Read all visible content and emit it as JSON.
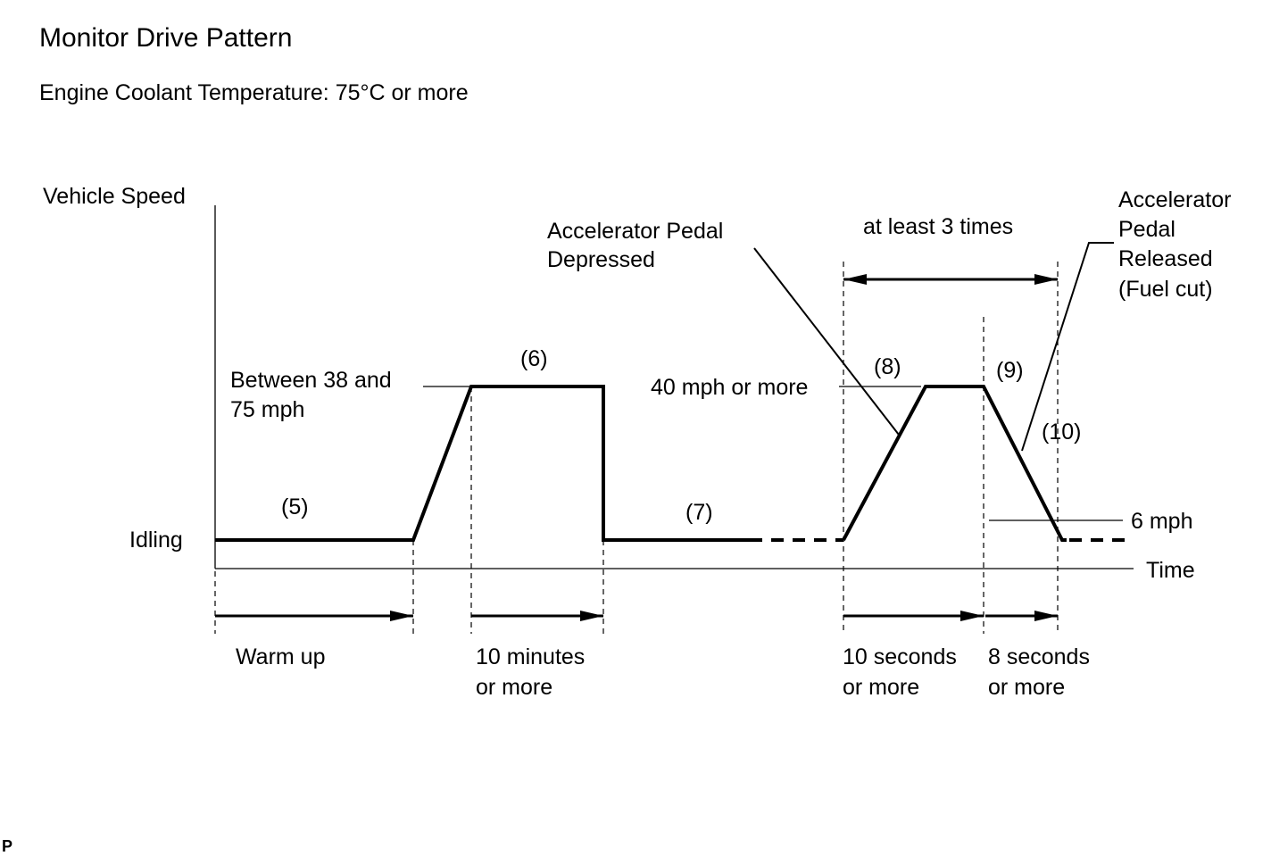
{
  "title": "Monitor Drive Pattern",
  "condition": "Engine Coolant Temperature: 75°C or more",
  "y_axis_label": "Vehicle Speed",
  "x_axis_label": "Time",
  "idling_label": "Idling",
  "steps": {
    "s5": "(5)",
    "s6": "(6)",
    "s7": "(7)",
    "s8": "(8)",
    "s9": "(9)",
    "s10": "(10)"
  },
  "speed_labels": {
    "between_1": "Between 38 and",
    "between_2": "75 mph",
    "forty": "40 mph or more",
    "six": "6 mph"
  },
  "annotations": {
    "pedal_depressed_1": "Accelerator Pedal",
    "pedal_depressed_2": "Depressed",
    "repeat": "at least 3 times",
    "pedal_released_1": "Accelerator",
    "pedal_released_2": "Pedal",
    "pedal_released_3": "Released",
    "pedal_released_4": "(Fuel cut)"
  },
  "durations": {
    "warm_up": "Warm up",
    "ten_min_1": "10 minutes",
    "ten_min_2": "or more",
    "ten_sec_1": "10 seconds",
    "ten_sec_2": "or more",
    "eight_sec_1": "8 seconds",
    "eight_sec_2": "or more"
  },
  "corner_mark": "P"
}
